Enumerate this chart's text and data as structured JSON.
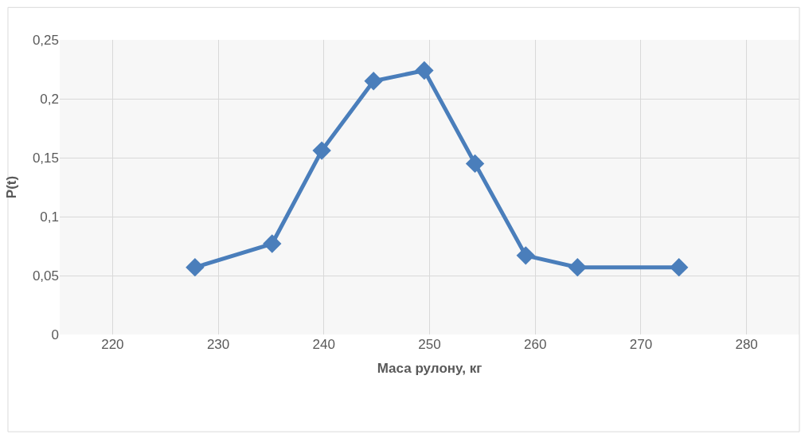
{
  "chart_data": {
    "type": "line",
    "xlabel": "Маса рулону, кг",
    "ylabel": "P(t)",
    "x": [
      227.8,
      235.1,
      239.8,
      244.7,
      249.5,
      254.3,
      259.1,
      264.0,
      273.6
    ],
    "series": [
      {
        "color": "#4a7ebb",
        "values": [
          0.057,
          0.077,
          0.156,
          0.215,
          0.224,
          0.145,
          0.067,
          0.057,
          0.057
        ]
      }
    ],
    "xlim": [
      215,
      285
    ],
    "xticks": [
      220,
      230,
      240,
      250,
      260,
      270,
      280
    ],
    "ylim": [
      0,
      0.25
    ],
    "yticks": [
      {
        "value": 0,
        "label": "0"
      },
      {
        "value": 0.05,
        "label": "0,05"
      },
      {
        "value": 0.1,
        "label": "0,1"
      },
      {
        "value": 0.15,
        "label": "0,15"
      },
      {
        "value": 0.2,
        "label": "0,2"
      },
      {
        "value": 0.25,
        "label": "0,25"
      }
    ],
    "grid": true,
    "legend": false,
    "marker": "diamond",
    "line_style": "solid"
  }
}
